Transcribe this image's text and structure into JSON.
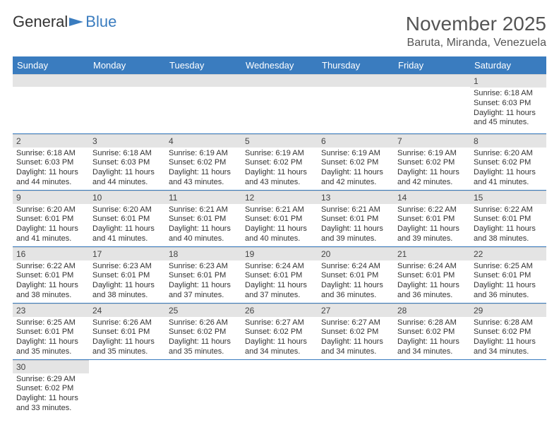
{
  "brand": {
    "part1": "General",
    "part2": "Blue"
  },
  "title": "November 2025",
  "location": "Baruta, Miranda, Venezuela",
  "weekdays": [
    "Sunday",
    "Monday",
    "Tuesday",
    "Wednesday",
    "Thursday",
    "Friday",
    "Saturday"
  ],
  "colors": {
    "header_bg": "#3a7cbf",
    "header_fg": "#ffffff",
    "daynum_bg": "#e4e4e4",
    "cell_border": "#3a7cbf",
    "text": "#333333"
  },
  "weeks": [
    [
      null,
      null,
      null,
      null,
      null,
      null,
      {
        "n": "1",
        "sunrise": "Sunrise: 6:18 AM",
        "sunset": "Sunset: 6:03 PM",
        "daylight": "Daylight: 11 hours and 45 minutes."
      }
    ],
    [
      {
        "n": "2",
        "sunrise": "Sunrise: 6:18 AM",
        "sunset": "Sunset: 6:03 PM",
        "daylight": "Daylight: 11 hours and 44 minutes."
      },
      {
        "n": "3",
        "sunrise": "Sunrise: 6:18 AM",
        "sunset": "Sunset: 6:03 PM",
        "daylight": "Daylight: 11 hours and 44 minutes."
      },
      {
        "n": "4",
        "sunrise": "Sunrise: 6:19 AM",
        "sunset": "Sunset: 6:02 PM",
        "daylight": "Daylight: 11 hours and 43 minutes."
      },
      {
        "n": "5",
        "sunrise": "Sunrise: 6:19 AM",
        "sunset": "Sunset: 6:02 PM",
        "daylight": "Daylight: 11 hours and 43 minutes."
      },
      {
        "n": "6",
        "sunrise": "Sunrise: 6:19 AM",
        "sunset": "Sunset: 6:02 PM",
        "daylight": "Daylight: 11 hours and 42 minutes."
      },
      {
        "n": "7",
        "sunrise": "Sunrise: 6:19 AM",
        "sunset": "Sunset: 6:02 PM",
        "daylight": "Daylight: 11 hours and 42 minutes."
      },
      {
        "n": "8",
        "sunrise": "Sunrise: 6:20 AM",
        "sunset": "Sunset: 6:02 PM",
        "daylight": "Daylight: 11 hours and 41 minutes."
      }
    ],
    [
      {
        "n": "9",
        "sunrise": "Sunrise: 6:20 AM",
        "sunset": "Sunset: 6:01 PM",
        "daylight": "Daylight: 11 hours and 41 minutes."
      },
      {
        "n": "10",
        "sunrise": "Sunrise: 6:20 AM",
        "sunset": "Sunset: 6:01 PM",
        "daylight": "Daylight: 11 hours and 41 minutes."
      },
      {
        "n": "11",
        "sunrise": "Sunrise: 6:21 AM",
        "sunset": "Sunset: 6:01 PM",
        "daylight": "Daylight: 11 hours and 40 minutes."
      },
      {
        "n": "12",
        "sunrise": "Sunrise: 6:21 AM",
        "sunset": "Sunset: 6:01 PM",
        "daylight": "Daylight: 11 hours and 40 minutes."
      },
      {
        "n": "13",
        "sunrise": "Sunrise: 6:21 AM",
        "sunset": "Sunset: 6:01 PM",
        "daylight": "Daylight: 11 hours and 39 minutes."
      },
      {
        "n": "14",
        "sunrise": "Sunrise: 6:22 AM",
        "sunset": "Sunset: 6:01 PM",
        "daylight": "Daylight: 11 hours and 39 minutes."
      },
      {
        "n": "15",
        "sunrise": "Sunrise: 6:22 AM",
        "sunset": "Sunset: 6:01 PM",
        "daylight": "Daylight: 11 hours and 38 minutes."
      }
    ],
    [
      {
        "n": "16",
        "sunrise": "Sunrise: 6:22 AM",
        "sunset": "Sunset: 6:01 PM",
        "daylight": "Daylight: 11 hours and 38 minutes."
      },
      {
        "n": "17",
        "sunrise": "Sunrise: 6:23 AM",
        "sunset": "Sunset: 6:01 PM",
        "daylight": "Daylight: 11 hours and 38 minutes."
      },
      {
        "n": "18",
        "sunrise": "Sunrise: 6:23 AM",
        "sunset": "Sunset: 6:01 PM",
        "daylight": "Daylight: 11 hours and 37 minutes."
      },
      {
        "n": "19",
        "sunrise": "Sunrise: 6:24 AM",
        "sunset": "Sunset: 6:01 PM",
        "daylight": "Daylight: 11 hours and 37 minutes."
      },
      {
        "n": "20",
        "sunrise": "Sunrise: 6:24 AM",
        "sunset": "Sunset: 6:01 PM",
        "daylight": "Daylight: 11 hours and 36 minutes."
      },
      {
        "n": "21",
        "sunrise": "Sunrise: 6:24 AM",
        "sunset": "Sunset: 6:01 PM",
        "daylight": "Daylight: 11 hours and 36 minutes."
      },
      {
        "n": "22",
        "sunrise": "Sunrise: 6:25 AM",
        "sunset": "Sunset: 6:01 PM",
        "daylight": "Daylight: 11 hours and 36 minutes."
      }
    ],
    [
      {
        "n": "23",
        "sunrise": "Sunrise: 6:25 AM",
        "sunset": "Sunset: 6:01 PM",
        "daylight": "Daylight: 11 hours and 35 minutes."
      },
      {
        "n": "24",
        "sunrise": "Sunrise: 6:26 AM",
        "sunset": "Sunset: 6:01 PM",
        "daylight": "Daylight: 11 hours and 35 minutes."
      },
      {
        "n": "25",
        "sunrise": "Sunrise: 6:26 AM",
        "sunset": "Sunset: 6:02 PM",
        "daylight": "Daylight: 11 hours and 35 minutes."
      },
      {
        "n": "26",
        "sunrise": "Sunrise: 6:27 AM",
        "sunset": "Sunset: 6:02 PM",
        "daylight": "Daylight: 11 hours and 34 minutes."
      },
      {
        "n": "27",
        "sunrise": "Sunrise: 6:27 AM",
        "sunset": "Sunset: 6:02 PM",
        "daylight": "Daylight: 11 hours and 34 minutes."
      },
      {
        "n": "28",
        "sunrise": "Sunrise: 6:28 AM",
        "sunset": "Sunset: 6:02 PM",
        "daylight": "Daylight: 11 hours and 34 minutes."
      },
      {
        "n": "29",
        "sunrise": "Sunrise: 6:28 AM",
        "sunset": "Sunset: 6:02 PM",
        "daylight": "Daylight: 11 hours and 34 minutes."
      }
    ],
    [
      {
        "n": "30",
        "sunrise": "Sunrise: 6:29 AM",
        "sunset": "Sunset: 6:02 PM",
        "daylight": "Daylight: 11 hours and 33 minutes."
      },
      null,
      null,
      null,
      null,
      null,
      null
    ]
  ]
}
